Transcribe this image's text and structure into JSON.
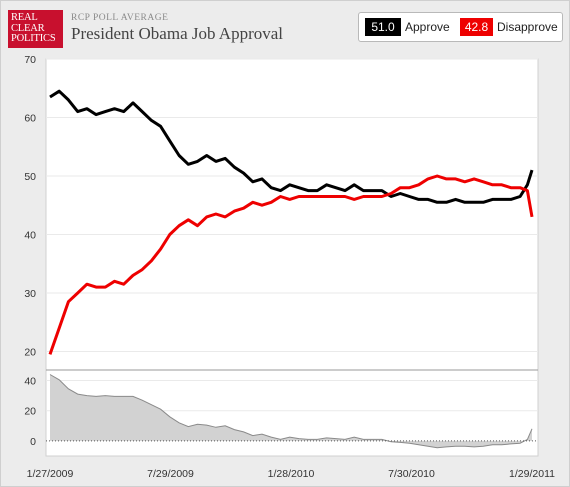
{
  "header": {
    "logo_lines": [
      "REAL",
      "CLEAR",
      "POLITICS"
    ],
    "kicker": "RCP POLL AVERAGE",
    "title": "President Obama Job Approval"
  },
  "legend": {
    "approve_value": "51.0",
    "approve_label": "Approve",
    "approve_color": "#000000",
    "disapprove_value": "42.8",
    "disapprove_label": "Disapprove",
    "disapprove_color": "#ee0000"
  },
  "chart_data": [
    {
      "type": "line",
      "title": "President Obama Job Approval",
      "x_ticks": [
        "1/27/2009",
        "7/29/2009",
        "1/28/2010",
        "7/30/2010",
        "1/29/2011"
      ],
      "y_ticks": [
        "70",
        "60",
        "50",
        "40",
        "30",
        "20"
      ],
      "ylim": [
        17,
        70
      ],
      "grid": "horizontal",
      "series": [
        {
          "name": "Approve",
          "color": "#000000",
          "x": [
            "1/27/2009",
            "2/10/2009",
            "2/24/2009",
            "3/10/2009",
            "3/24/2009",
            "4/7/2009",
            "4/21/2009",
            "5/5/2009",
            "5/19/2009",
            "6/2/2009",
            "6/16/2009",
            "6/30/2009",
            "7/14/2009",
            "7/28/2009",
            "8/11/2009",
            "8/25/2009",
            "9/8/2009",
            "9/22/2009",
            "10/6/2009",
            "10/20/2009",
            "11/3/2009",
            "11/17/2009",
            "12/1/2009",
            "12/15/2009",
            "12/29/2009",
            "1/12/2010",
            "1/26/2010",
            "2/9/2010",
            "2/23/2010",
            "3/9/2010",
            "3/23/2010",
            "4/6/2010",
            "4/20/2010",
            "5/4/2010",
            "5/18/2010",
            "6/1/2010",
            "6/15/2010",
            "6/29/2010",
            "7/13/2010",
            "7/27/2010",
            "8/10/2010",
            "8/24/2010",
            "9/7/2010",
            "9/21/2010",
            "10/5/2010",
            "10/19/2010",
            "11/2/2010",
            "11/16/2010",
            "11/30/2010",
            "12/14/2010",
            "12/28/2010",
            "1/11/2011",
            "1/22/2011",
            "1/29/2011"
          ],
          "values": [
            63.5,
            64.5,
            63.0,
            61.0,
            61.5,
            60.5,
            61.0,
            61.5,
            61.0,
            62.5,
            61.0,
            59.5,
            58.5,
            56.0,
            53.5,
            52.0,
            52.5,
            53.5,
            52.5,
            53.0,
            51.5,
            50.5,
            49.0,
            49.5,
            48.0,
            47.5,
            48.5,
            48.0,
            47.5,
            47.5,
            48.5,
            48.0,
            47.5,
            48.5,
            47.5,
            47.5,
            47.5,
            46.5,
            47.0,
            46.5,
            46.0,
            46.0,
            45.5,
            45.5,
            46.0,
            45.5,
            45.5,
            45.5,
            46.0,
            46.0,
            46.0,
            46.5,
            48.5,
            51.0
          ]
        },
        {
          "name": "Disapprove",
          "color": "#ee0000",
          "x": [
            "1/27/2009",
            "2/10/2009",
            "2/24/2009",
            "3/10/2009",
            "3/24/2009",
            "4/7/2009",
            "4/21/2009",
            "5/5/2009",
            "5/19/2009",
            "6/2/2009",
            "6/16/2009",
            "6/30/2009",
            "7/14/2009",
            "7/28/2009",
            "8/11/2009",
            "8/25/2009",
            "9/8/2009",
            "9/22/2009",
            "10/6/2009",
            "10/20/2009",
            "11/3/2009",
            "11/17/2009",
            "12/1/2009",
            "12/15/2009",
            "12/29/2009",
            "1/12/2010",
            "1/26/2010",
            "2/9/2010",
            "2/23/2010",
            "3/9/2010",
            "3/23/2010",
            "4/6/2010",
            "4/20/2010",
            "5/4/2010",
            "5/18/2010",
            "6/1/2010",
            "6/15/2010",
            "6/29/2010",
            "7/13/2010",
            "7/27/2010",
            "8/10/2010",
            "8/24/2010",
            "9/7/2010",
            "9/21/2010",
            "10/5/2010",
            "10/19/2010",
            "11/2/2010",
            "11/16/2010",
            "11/30/2010",
            "12/14/2010",
            "12/28/2010",
            "1/11/2011",
            "1/22/2011",
            "1/29/2011"
          ],
          "values": [
            19.5,
            24.0,
            28.5,
            30.0,
            31.5,
            31.0,
            31.0,
            32.0,
            31.5,
            33.0,
            34.0,
            35.5,
            37.5,
            40.0,
            41.5,
            42.5,
            41.5,
            43.0,
            43.5,
            43.0,
            44.0,
            44.5,
            45.5,
            45.0,
            45.5,
            46.5,
            46.0,
            46.5,
            46.5,
            46.5,
            46.5,
            46.5,
            46.5,
            46.0,
            46.5,
            46.5,
            46.5,
            47.0,
            48.0,
            48.0,
            48.5,
            49.5,
            50.0,
            49.5,
            49.5,
            49.0,
            49.5,
            49.0,
            48.5,
            48.5,
            48.0,
            48.0,
            47.5,
            43.0
          ]
        }
      ]
    },
    {
      "type": "area",
      "title": "",
      "y_ticks": [
        "40",
        "20",
        "0"
      ],
      "ylim": [
        -10,
        45
      ],
      "x": [
        "1/27/2009",
        "2/10/2009",
        "2/24/2009",
        "3/10/2009",
        "3/24/2009",
        "4/7/2009",
        "4/21/2009",
        "5/5/2009",
        "5/19/2009",
        "6/2/2009",
        "6/16/2009",
        "6/30/2009",
        "7/14/2009",
        "7/28/2009",
        "8/11/2009",
        "8/25/2009",
        "9/8/2009",
        "9/22/2009",
        "10/6/2009",
        "10/20/2009",
        "11/3/2009",
        "11/17/2009",
        "12/1/2009",
        "12/15/2009",
        "12/29/2009",
        "1/12/2010",
        "1/26/2010",
        "2/9/2010",
        "2/23/2010",
        "3/9/2010",
        "3/23/2010",
        "4/6/2010",
        "4/20/2010",
        "5/4/2010",
        "5/18/2010",
        "6/1/2010",
        "6/15/2010",
        "6/29/2010",
        "7/13/2010",
        "7/27/2010",
        "8/10/2010",
        "8/24/2010",
        "9/7/2010",
        "9/21/2010",
        "10/5/2010",
        "10/19/2010",
        "11/2/2010",
        "11/16/2010",
        "11/30/2010",
        "12/14/2010",
        "12/28/2010",
        "1/11/2011",
        "1/22/2011",
        "1/29/2011"
      ],
      "values": [
        44.0,
        40.5,
        34.5,
        31.0,
        30.0,
        29.5,
        30.0,
        29.5,
        29.5,
        29.5,
        27.0,
        24.0,
        21.0,
        16.0,
        12.0,
        9.5,
        11.0,
        10.5,
        9.0,
        10.0,
        7.5,
        6.0,
        3.5,
        4.5,
        2.5,
        1.0,
        2.5,
        1.5,
        1.0,
        1.0,
        2.0,
        1.5,
        1.0,
        2.5,
        1.0,
        1.0,
        1.0,
        -0.5,
        -1.0,
        -1.5,
        -2.5,
        -3.5,
        -4.5,
        -4.0,
        -3.5,
        -3.5,
        -4.0,
        -3.5,
        -2.5,
        -2.5,
        -2.0,
        -1.5,
        1.0,
        8.0
      ]
    }
  ]
}
